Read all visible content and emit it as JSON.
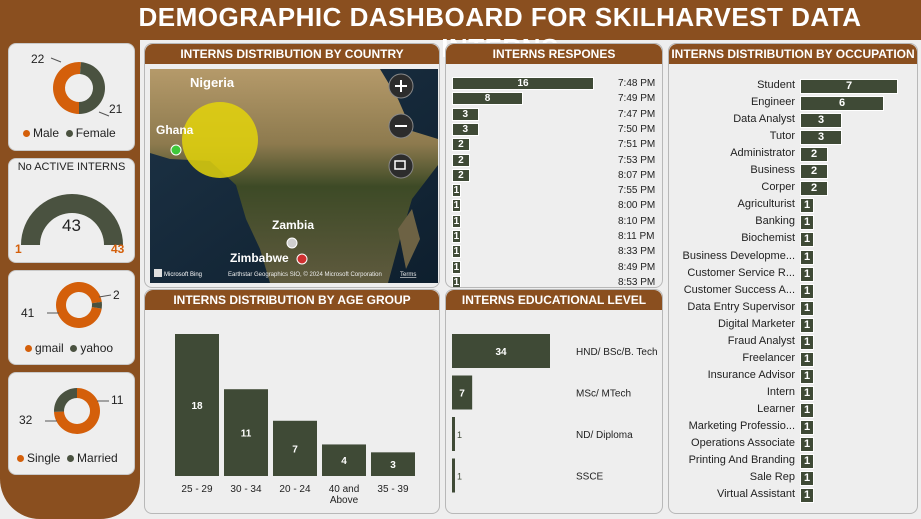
{
  "title": "DEMOGRAPHIC DASHBOARD FOR SKILHARVEST DATA INTERNS",
  "colors": {
    "brown": "#8a4f1f",
    "orange": "#d45f0a",
    "dark_green": "#4a5240",
    "bar": "#3f4a36"
  },
  "gender": {
    "male": 22,
    "female": 21,
    "male_label": "Male",
    "female_label": "Female"
  },
  "active": {
    "title": "No ACTIVE INTERNS",
    "value": 43,
    "min": 1,
    "max": 43
  },
  "email": {
    "gmail": 41,
    "yahoo": 2,
    "gmail_label": "gmail",
    "yahoo_label": "yahoo"
  },
  "marital": {
    "single": 32,
    "married": 11,
    "single_label": "Single",
    "married_label": "Married"
  },
  "map": {
    "title": "INTERNS DISTRIBUTION BY COUNTRY",
    "countries": [
      "Nigeria",
      "Ghana",
      "Zambia",
      "Zimbabwe"
    ],
    "bing": "Microsoft Bing",
    "attribution": "Earthstar Geographics SIO, © 2024 Microsoft Corporation",
    "terms": "Terms",
    "icons": [
      "plus-icon",
      "minus-icon",
      "select-icon"
    ]
  },
  "responses": {
    "title": "INTERNS RESPONES",
    "rows": [
      {
        "value": 16,
        "time": "7:48 PM"
      },
      {
        "value": 8,
        "time": "7:49 PM"
      },
      {
        "value": 3,
        "time": "7:47 PM"
      },
      {
        "value": 3,
        "time": "7:50 PM"
      },
      {
        "value": 2,
        "time": "7:51 PM"
      },
      {
        "value": 2,
        "time": "7:53 PM"
      },
      {
        "value": 2,
        "time": "8:07 PM"
      },
      {
        "value": 1,
        "time": "7:55 PM"
      },
      {
        "value": 1,
        "time": "8:00 PM"
      },
      {
        "value": 1,
        "time": "8:10 PM"
      },
      {
        "value": 1,
        "time": "8:11 PM"
      },
      {
        "value": 1,
        "time": "8:33 PM"
      },
      {
        "value": 1,
        "time": "8:49 PM"
      },
      {
        "value": 1,
        "time": "8:53 PM"
      }
    ]
  },
  "occupation": {
    "title": "INTERNS DISTRIBUTION BY OCCUPATION",
    "rows": [
      {
        "label": "Student",
        "value": 7
      },
      {
        "label": "Engineer",
        "value": 6
      },
      {
        "label": "Data Analyst",
        "value": 3
      },
      {
        "label": "Tutor",
        "value": 3
      },
      {
        "label": "Administrator",
        "value": 2
      },
      {
        "label": "Business",
        "value": 2
      },
      {
        "label": "Corper",
        "value": 2
      },
      {
        "label": "Agriculturist",
        "value": 1
      },
      {
        "label": "Banking",
        "value": 1
      },
      {
        "label": "Biochemist",
        "value": 1
      },
      {
        "label": "Business Developme...",
        "value": 1
      },
      {
        "label": "Customer Service R...",
        "value": 1
      },
      {
        "label": "Customer Success A...",
        "value": 1
      },
      {
        "label": "Data Entry Supervisor",
        "value": 1
      },
      {
        "label": "Digital Marketer",
        "value": 1
      },
      {
        "label": "Fraud Analyst",
        "value": 1
      },
      {
        "label": "Freelancer",
        "value": 1
      },
      {
        "label": "Insurance Advisor",
        "value": 1
      },
      {
        "label": "Intern",
        "value": 1
      },
      {
        "label": "Learner",
        "value": 1
      },
      {
        "label": "Marketing Professio...",
        "value": 1
      },
      {
        "label": "Operations Associate",
        "value": 1
      },
      {
        "label": "Printing And Branding",
        "value": 1
      },
      {
        "label": "Sale Rep",
        "value": 1
      },
      {
        "label": "Virtual Assistant",
        "value": 1
      }
    ]
  },
  "chart_data": [
    {
      "type": "bar",
      "title": "INTERNS DISTRIBUTION BY AGE GROUP",
      "categories": [
        "25 - 29",
        "30 - 34",
        "20 - 24",
        "40 and Above",
        "35 - 39"
      ],
      "values": [
        18,
        11,
        7,
        4,
        3
      ]
    },
    {
      "type": "bar",
      "title": "INTERNS EDUCATIONAL LEVEL",
      "categories": [
        "HND/ BSc/B. Tech",
        "MSc/ MTech",
        "ND/ Diploma",
        "SSCE"
      ],
      "values": [
        34,
        7,
        1,
        1
      ]
    }
  ]
}
